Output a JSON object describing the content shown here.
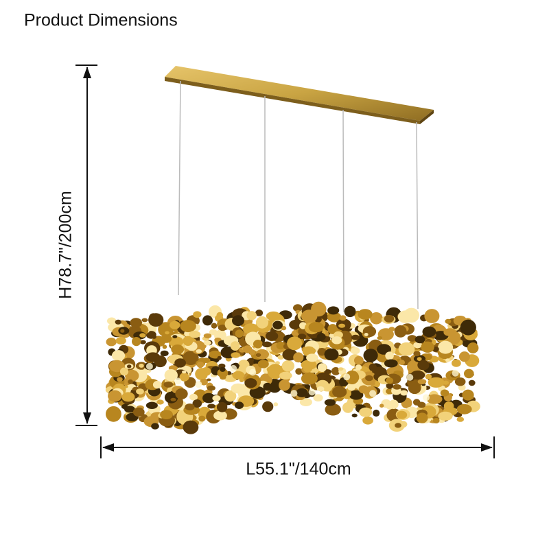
{
  "header": {
    "title": "Product Dimensions"
  },
  "dimensions": {
    "height": "H78.7\"/200cm",
    "length": "L55.1\"/140cm"
  }
}
